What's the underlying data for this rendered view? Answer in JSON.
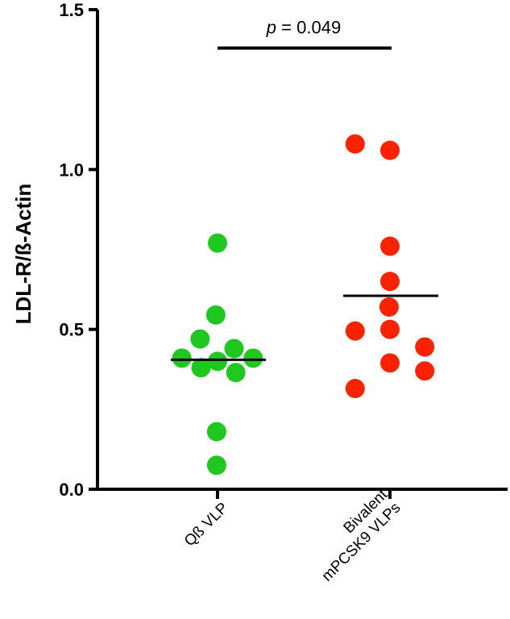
{
  "chart_data": {
    "type": "scatter",
    "ylabel": "LDL-R/ß-Actin",
    "ylim": [
      0,
      1.5
    ],
    "yticks": [
      "0.0",
      "0.5",
      "1.0",
      "1.5"
    ],
    "categories": [
      "Qß VLP",
      "Bivalent\nmPCSK9 VLPs"
    ],
    "colors": [
      "#1ec81e",
      "#ff2200"
    ],
    "series": [
      {
        "category": "Qß VLP",
        "points": [
          {
            "x": 0.0,
            "y": 0.77
          },
          {
            "x": -0.02,
            "y": 0.545
          },
          {
            "x": -0.2,
            "y": 0.47
          },
          {
            "x": -0.41,
            "y": 0.41
          },
          {
            "x": -0.19,
            "y": 0.38
          },
          {
            "x": 0.0,
            "y": 0.4
          },
          {
            "x": 0.19,
            "y": 0.44
          },
          {
            "x": 0.21,
            "y": 0.365
          },
          {
            "x": 0.41,
            "y": 0.41
          },
          {
            "x": -0.01,
            "y": 0.18
          },
          {
            "x": -0.01,
            "y": 0.075
          }
        ],
        "mean": 0.405
      },
      {
        "category": "Bivalent\nmPCSK9 VLPs",
        "points": [
          {
            "x": -0.4,
            "y": 1.08
          },
          {
            "x": 0.0,
            "y": 1.06
          },
          {
            "x": 0.0,
            "y": 0.76
          },
          {
            "x": 0.0,
            "y": 0.65
          },
          {
            "x": -0.01,
            "y": 0.57
          },
          {
            "x": -0.4,
            "y": 0.495
          },
          {
            "x": 0.0,
            "y": 0.5
          },
          {
            "x": 0.4,
            "y": 0.445
          },
          {
            "x": 0.0,
            "y": 0.395
          },
          {
            "x": 0.4,
            "y": 0.37
          },
          {
            "x": -0.4,
            "y": 0.315
          }
        ],
        "mean": 0.605
      }
    ],
    "annotation": {
      "p_symbol": "p",
      "p_text": " = 0.049",
      "y": 1.38
    }
  }
}
